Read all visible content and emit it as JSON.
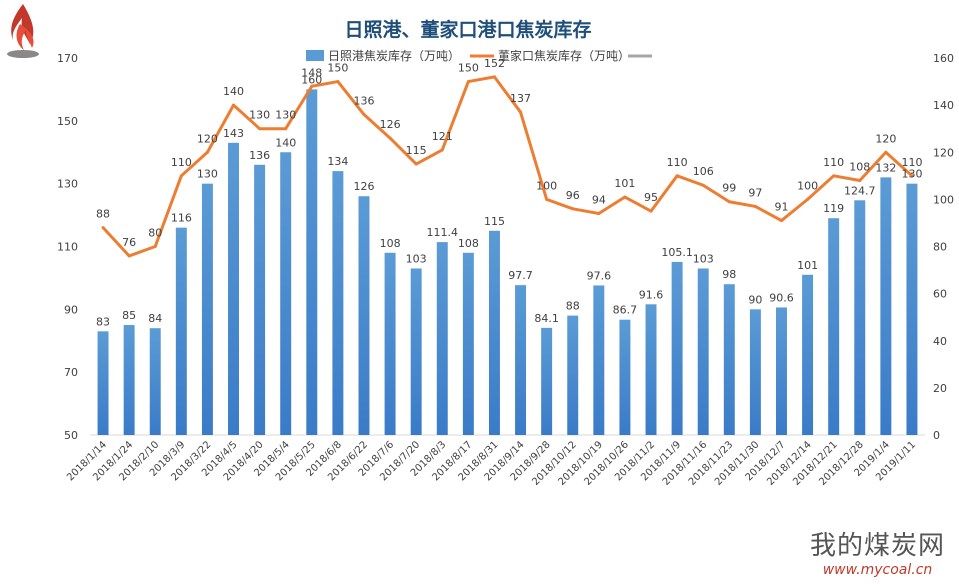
{
  "chart_data": {
    "type": "bar",
    "title": "日照港、董家口港口焦炭库存",
    "categories": [
      "2018/1/14",
      "2018/1/24",
      "2018/2/10",
      "2018/3/9",
      "2018/3/22",
      "2018/4/5",
      "2018/4/20",
      "2018/5/4",
      "2018/5/25",
      "2018/6/8",
      "2018/6/22",
      "2018/7/6",
      "2018/7/20",
      "2018/8/3",
      "2018/8/17",
      "2018/8/31",
      "2018/9/14",
      "2018/9/28",
      "2018/10/12",
      "2018/10/19",
      "2018/10/26",
      "2018/11/2",
      "2018/11/9",
      "2018/11/16",
      "2018/11/23",
      "2018/11/30",
      "2018/12/7",
      "2018/12/14",
      "2018/12/21",
      "2018/12/28",
      "2019/1/4",
      "2019/1/11"
    ],
    "series": [
      {
        "name": "日照港焦炭库存（万吨）",
        "type": "bar",
        "axis": "left",
        "color": "#5b9bd5",
        "values": [
          83,
          85,
          84,
          116,
          130,
          143,
          136,
          140,
          160,
          134,
          126,
          108,
          103,
          111.4,
          108,
          115,
          97.7,
          84.1,
          88,
          97.6,
          86.7,
          91.6,
          105.1,
          103,
          98,
          90,
          90.6,
          101,
          119,
          124.7,
          132,
          130
        ],
        "labels": [
          "83",
          "85",
          "84",
          "116",
          "130",
          "143",
          "136",
          "140",
          "160",
          "134",
          "126",
          "108",
          "103",
          "111.4",
          "108",
          "115",
          "97.7",
          "84.1",
          "88",
          "97.6",
          "86.7",
          "91.6",
          "105.1",
          "103",
          "98",
          "90",
          "90.6",
          "101",
          "119",
          "124.7",
          "132",
          "130"
        ]
      },
      {
        "name": "董家口焦炭库存（万吨）",
        "type": "line",
        "axis": "right",
        "color": "#ed7d31",
        "values": [
          88,
          76,
          80,
          110,
          120,
          140,
          130,
          130,
          148,
          150,
          136,
          126,
          115,
          121,
          150,
          152,
          137,
          100,
          96,
          94,
          101,
          95,
          110,
          106,
          99,
          97,
          91,
          100,
          110,
          108,
          120,
          110
        ],
        "labels": [
          "88",
          "76",
          "80",
          "110",
          "120",
          "140",
          "130",
          "130",
          "148",
          "150",
          "136",
          "126",
          "115",
          "121",
          "150",
          "152",
          "137",
          "100",
          "96",
          "94",
          "101",
          "95",
          "110",
          "106",
          "99",
          "97",
          "91",
          "100",
          "110",
          "108",
          "120",
          "110"
        ]
      }
    ],
    "legend_extra": {
      "type": "line",
      "color": "#a5a5a5"
    },
    "y_left": {
      "min": 50,
      "max": 170,
      "ticks": [
        "50",
        "70",
        "90",
        "110",
        "130",
        "150",
        "170"
      ]
    },
    "y_right": {
      "min": 0,
      "max": 160,
      "ticks": [
        "0",
        "20",
        "40",
        "60",
        "80",
        "100",
        "120",
        "140",
        "160"
      ]
    },
    "legend_position": "top",
    "grid": false
  },
  "watermark": {
    "name": "我的煤炭网",
    "url": "www.mycoal.cn"
  }
}
